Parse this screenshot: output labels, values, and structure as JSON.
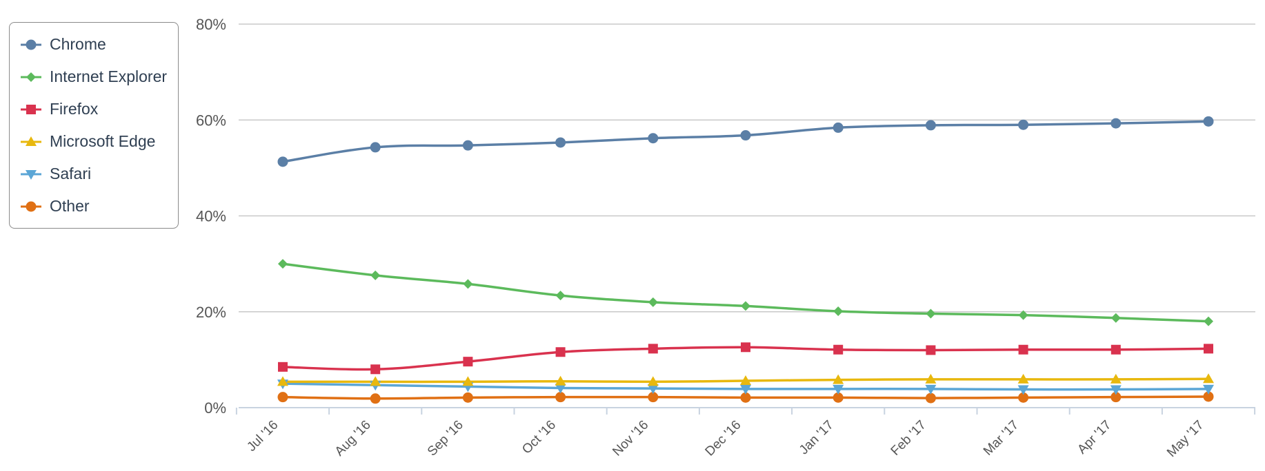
{
  "chart_data": {
    "type": "line",
    "title": "",
    "xlabel": "",
    "ylabel": "",
    "ylim": [
      0,
      80
    ],
    "yticks": [
      "0%",
      "20%",
      "40%",
      "60%",
      "80%"
    ],
    "ytick_values": [
      0,
      20,
      40,
      60,
      80
    ],
    "categories": [
      "Jul '16",
      "Aug '16",
      "Sep '16",
      "Oct '16",
      "Nov '16",
      "Dec '16",
      "Jan '17",
      "Feb '17",
      "Mar '17",
      "Apr '17",
      "May '17"
    ],
    "grid": true,
    "legend_position": "top-left",
    "series": [
      {
        "name": "Chrome",
        "color": "#5b7fa6",
        "marker": "circle",
        "values": [
          51.3,
          54.3,
          54.7,
          55.3,
          56.2,
          56.8,
          58.4,
          58.9,
          59.0,
          59.3,
          59.7
        ]
      },
      {
        "name": "Internet Explorer",
        "color": "#5cba5c",
        "marker": "diamond",
        "values": [
          30.0,
          27.6,
          25.8,
          23.4,
          22.0,
          21.2,
          20.1,
          19.6,
          19.3,
          18.7,
          18.0
        ]
      },
      {
        "name": "Firefox",
        "color": "#d9324e",
        "marker": "square",
        "values": [
          8.5,
          8.0,
          9.6,
          11.6,
          12.3,
          12.6,
          12.1,
          12.0,
          12.1,
          12.1,
          12.3
        ]
      },
      {
        "name": "Microsoft Edge",
        "color": "#e8b80e",
        "marker": "triangle",
        "values": [
          5.4,
          5.4,
          5.4,
          5.5,
          5.4,
          5.6,
          5.8,
          5.9,
          5.9,
          5.9,
          6.0
        ]
      },
      {
        "name": "Safari",
        "color": "#5ba6d6",
        "marker": "triangle-down",
        "values": [
          5.0,
          4.7,
          4.4,
          4.1,
          4.0,
          3.9,
          3.9,
          3.9,
          3.8,
          3.8,
          3.9
        ]
      },
      {
        "name": "Other",
        "color": "#e07014",
        "marker": "circle",
        "values": [
          2.2,
          1.9,
          2.1,
          2.2,
          2.2,
          2.1,
          2.1,
          2.0,
          2.1,
          2.2,
          2.3
        ]
      }
    ]
  }
}
